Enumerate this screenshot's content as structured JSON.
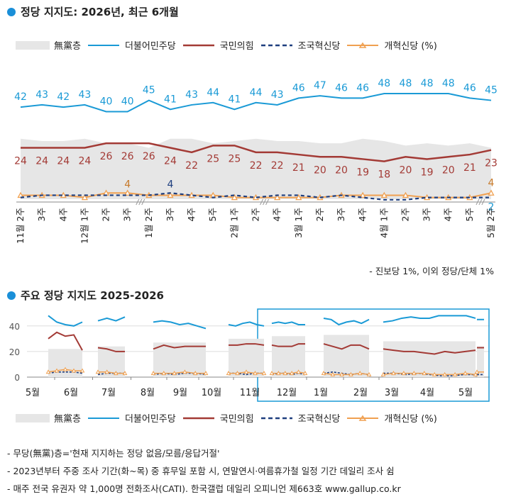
{
  "title1": "정당 지지도: 2026년, 최근 6개월",
  "title2": "주요 정당 지지도 2025-2026",
  "legend": {
    "none": "無黨층",
    "dem": "더불어민주당",
    "ppp": "국민의힘",
    "rebuild": "조국혁신당",
    "reform": "개혁신당 (%)",
    "reform2": "개혁신당 (%)"
  },
  "side_note": "- 진보당 1%, 이외 정당/단체 1%",
  "notes": [
    "- 무당(無黨)층='현재 지지하는 정당 없음/모름/응답거절'",
    "- 2023년부터 주중 조사 기간(화~목) 중 휴무일 포함 시, 연말연시·여름휴가철 일정 기간 데일리 조사 쉼",
    "- 매주 전국 유권자 약 1,000명 전화조사(CATI). 한국갤럽 데일리 오피니언 제663호 www.gallup.co.kr"
  ],
  "colors": {
    "dem": "#1a9ad6",
    "ppp": "#a33a35",
    "rebuild": "#1f3f7f",
    "reform": "#f0a050",
    "none": "#e6e6e6",
    "accent": "#1a8fd8"
  },
  "chart_data": [
    {
      "type": "line",
      "title": "정당 지지도: 2026년, 최근 6개월",
      "categories": [
        "11월 2주",
        "3주",
        "4주",
        "12월 1주",
        "2주",
        "3주",
        "1월 2주",
        "3주",
        "4주",
        "5주",
        "2월 1주",
        "2주",
        "4주",
        "3월 1주",
        "2주",
        "3주",
        "4주",
        "4월 1주",
        "2주",
        "3주",
        "4주",
        "5주",
        "5월 2주"
      ],
      "series": [
        {
          "name": "더불어민주당",
          "values": [
            42,
            43,
            42,
            43,
            40,
            40,
            45,
            41,
            43,
            44,
            41,
            44,
            43,
            46,
            47,
            46,
            46,
            48,
            48,
            48,
            48,
            46,
            45
          ]
        },
        {
          "name": "국민의힘",
          "values": [
            24,
            24,
            24,
            24,
            26,
            26,
            26,
            24,
            22,
            25,
            25,
            22,
            22,
            21,
            20,
            20,
            19,
            18,
            20,
            19,
            20,
            21,
            23
          ]
        },
        {
          "name": "조국혁신당",
          "values": [
            2,
            3,
            3,
            3,
            3,
            3,
            3,
            4,
            3,
            2,
            3,
            2,
            3,
            3,
            2,
            3,
            2,
            1,
            1,
            2,
            2,
            2,
            2
          ]
        },
        {
          "name": "개혁신당 (%)",
          "values": [
            3,
            3,
            3,
            2,
            4,
            4,
            3,
            3,
            3,
            3,
            2,
            2,
            2,
            2,
            2,
            3,
            3,
            3,
            3,
            2,
            2,
            2,
            4
          ]
        },
        {
          "name": "無黨층",
          "values": [
            28,
            27,
            27,
            28,
            26,
            26,
            24,
            28,
            28,
            26,
            27,
            28,
            27,
            27,
            26,
            26,
            28,
            27,
            25,
            26,
            25,
            26,
            24
          ]
        }
      ],
      "labeled_extra": {
        "reform_dec3": "4",
        "rebuild_jan3": "4",
        "reform_last": "4",
        "rebuild_last": "2"
      },
      "axis_breaks": [
        "12월 3주 - 1월 2주",
        "2월 2주 - 2월 4주",
        "4월 5주 - 5월 2주"
      ]
    },
    {
      "type": "line",
      "title": "주요 정당 지지도 2025-2026",
      "x_labels": [
        "5월",
        "6월",
        "7월",
        "8월",
        "9월",
        "10월",
        "11월",
        "12월",
        "1월",
        "2월",
        "3월",
        "4월",
        "5월"
      ],
      "y_ticks": [
        0,
        20,
        40
      ],
      "ylim": [
        0,
        50
      ],
      "highlight": "2025-11 ~ 2026-05",
      "series": [
        {
          "name": "더불어민주당",
          "segments": [
            [
              48,
              43,
              41,
              40,
              43
            ],
            [
              44,
              46,
              44,
              47
            ],
            [
              43,
              44,
              43,
              41,
              42,
              40,
              38
            ],
            [
              41,
              40,
              42,
              43,
              41,
              40
            ],
            [
              42,
              43,
              42,
              43,
              41,
              41
            ],
            [
              46,
              45,
              41,
              43,
              44,
              42,
              45
            ],
            [
              43,
              44,
              46,
              47,
              46,
              46,
              48,
              48,
              48,
              48,
              46
            ],
            [
              45
            ]
          ]
        },
        {
          "name": "국민의힘",
          "segments": [
            [
              30,
              35,
              32,
              33,
              21
            ],
            [
              23,
              22,
              20,
              20
            ],
            [
              22,
              25,
              23,
              24,
              24,
              24
            ],
            [
              25,
              25,
              26,
              26,
              25
            ],
            [
              25,
              24,
              24,
              24,
              26,
              26
            ],
            [
              26,
              24,
              22,
              25,
              25,
              22
            ],
            [
              22,
              21,
              20,
              20,
              19,
              18,
              20,
              19,
              20,
              21
            ],
            [
              23
            ]
          ]
        },
        {
          "name": "조국혁신당",
          "segments": [
            [
              3,
              4,
              4,
              4,
              3
            ],
            [
              2,
              3,
              3,
              3
            ],
            [
              2,
              3,
              2,
              3,
              3,
              2
            ],
            [
              3,
              3,
              2,
              3,
              3
            ],
            [
              2,
              3,
              3,
              2,
              3,
              2
            ],
            [
              3,
              4,
              3,
              2,
              3,
              2
            ],
            [
              3,
              3,
              2,
              3,
              2,
              1,
              1,
              2,
              2
            ],
            [
              2
            ]
          ]
        },
        {
          "name": "개혁신당 (%)",
          "segments": [
            [
              4,
              5,
              6,
              5,
              5
            ],
            [
              4,
              4,
              3,
              3
            ],
            [
              3,
              3,
              3,
              4,
              3,
              3
            ],
            [
              3,
              3,
              4,
              3,
              3
            ],
            [
              3,
              3,
              3,
              3,
              4,
              3
            ],
            [
              3,
              2,
              2,
              2,
              3,
              2
            ],
            [
              2,
              3,
              3,
              3,
              3,
              2,
              2,
              2,
              3,
              2
            ],
            [
              4
            ]
          ]
        }
      ]
    }
  ]
}
